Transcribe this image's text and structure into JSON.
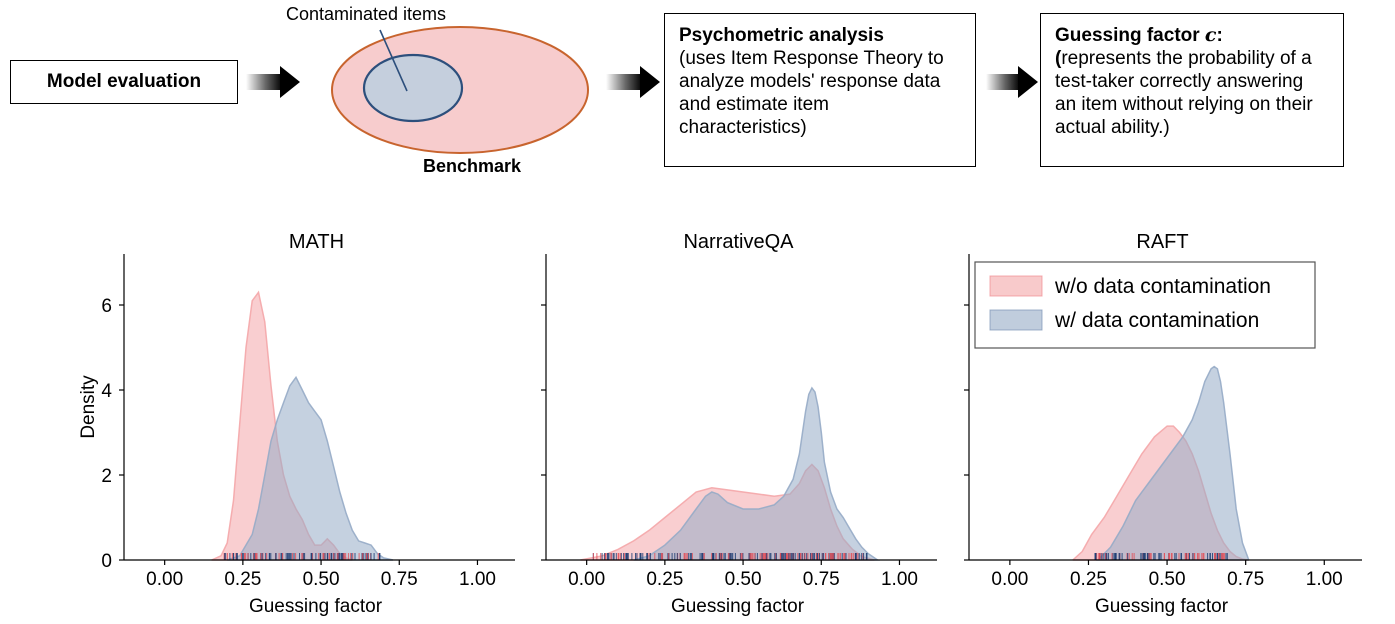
{
  "diagram": {
    "model_evaluation": "Model evaluation",
    "contaminated_items": "Contaminated items",
    "benchmark": "Benchmark",
    "psychometric_title": "Psychometric analysis",
    "psychometric_body": "(uses Item Response Theory to analyze models' response data and estimate item characteristics)",
    "guessing_title": "Guessing factor ",
    "guessing_symbol": "c",
    "guessing_colon": ":",
    "guessing_paren": "(",
    "guessing_body": "represents the probability of a test-taker correctly answering an item without relying on their actual ability.)",
    "colors": {
      "ellipse_fill": "#f7cccd",
      "ellipse_stroke": "#c8642e",
      "inner_fill": "#c5cfdd",
      "inner_stroke": "#2d4f7c"
    }
  },
  "chart_data": [
    {
      "type": "area",
      "title": "MATH",
      "xlabel": "Guessing factor",
      "ylabel": "Density",
      "xlim": [
        -0.13,
        1.12
      ],
      "ylim": [
        0,
        7.2
      ],
      "xticks": [
        "0.00",
        "0.25",
        "0.50",
        "0.75",
        "1.00"
      ],
      "yticks": [
        "0",
        "2",
        "4",
        "6"
      ],
      "series": [
        {
          "name": "w/o data contamination",
          "color": "#f4a6a9",
          "x": [
            0.15,
            0.18,
            0.2,
            0.22,
            0.24,
            0.26,
            0.28,
            0.3,
            0.32,
            0.34,
            0.36,
            0.38,
            0.4,
            0.42,
            0.44,
            0.46,
            0.48,
            0.5,
            0.52,
            0.54,
            0.56,
            0.58,
            0.6
          ],
          "y": [
            0,
            0.1,
            0.4,
            1.4,
            3.2,
            5.0,
            6.1,
            6.3,
            5.6,
            4.1,
            2.8,
            2.0,
            1.5,
            1.2,
            0.95,
            0.6,
            0.35,
            0.35,
            0.5,
            0.35,
            0.15,
            0.05,
            0
          ]
        },
        {
          "name": "w/ data contamination",
          "color": "#96abc7",
          "x": [
            0.2,
            0.24,
            0.28,
            0.3,
            0.32,
            0.34,
            0.36,
            0.38,
            0.4,
            0.42,
            0.44,
            0.46,
            0.48,
            0.5,
            0.52,
            0.54,
            0.56,
            0.58,
            0.6,
            0.62,
            0.64,
            0.66,
            0.68,
            0.7,
            0.73
          ],
          "y": [
            0,
            0.1,
            0.6,
            1.2,
            2.0,
            2.8,
            3.3,
            3.7,
            4.1,
            4.3,
            4.0,
            3.7,
            3.5,
            3.3,
            2.8,
            2.2,
            1.6,
            1.1,
            0.7,
            0.45,
            0.4,
            0.35,
            0.15,
            0.05,
            0
          ]
        }
      ],
      "rug_range": [
        0.19,
        0.69
      ]
    },
    {
      "type": "area",
      "title": "NarrativeQA",
      "xlabel": "Guessing factor",
      "ylabel": "",
      "xlim": [
        -0.13,
        1.12
      ],
      "ylim": [
        0,
        7.2
      ],
      "xticks": [
        "0.00",
        "0.25",
        "0.50",
        "0.75",
        "1.00"
      ],
      "yticks": [],
      "series": [
        {
          "name": "w/o data contamination",
          "color": "#f4a6a9",
          "x": [
            -0.02,
            0.05,
            0.1,
            0.15,
            0.2,
            0.25,
            0.3,
            0.35,
            0.4,
            0.45,
            0.5,
            0.55,
            0.6,
            0.65,
            0.68,
            0.7,
            0.72,
            0.74,
            0.76,
            0.78,
            0.8,
            0.82,
            0.85,
            0.88,
            0.92
          ],
          "y": [
            0,
            0.1,
            0.25,
            0.45,
            0.7,
            1.0,
            1.3,
            1.6,
            1.7,
            1.65,
            1.6,
            1.55,
            1.5,
            1.55,
            1.8,
            2.1,
            2.25,
            2.1,
            1.7,
            1.2,
            0.8,
            0.5,
            0.25,
            0.08,
            0
          ]
        },
        {
          "name": "w/ data contamination",
          "color": "#96abc7",
          "x": [
            0.15,
            0.2,
            0.25,
            0.3,
            0.35,
            0.38,
            0.4,
            0.42,
            0.45,
            0.5,
            0.55,
            0.6,
            0.63,
            0.66,
            0.68,
            0.69,
            0.7,
            0.71,
            0.72,
            0.73,
            0.74,
            0.75,
            0.76,
            0.78,
            0.8,
            0.82,
            0.84,
            0.86,
            0.88,
            0.9,
            0.93
          ],
          "y": [
            0,
            0.1,
            0.35,
            0.7,
            1.2,
            1.5,
            1.6,
            1.55,
            1.35,
            1.2,
            1.2,
            1.3,
            1.5,
            1.9,
            2.5,
            3.0,
            3.5,
            3.9,
            4.05,
            3.95,
            3.6,
            3.0,
            2.3,
            1.6,
            1.2,
            1.0,
            0.75,
            0.5,
            0.3,
            0.15,
            0
          ]
        }
      ],
      "rug_range": [
        0.02,
        0.9
      ]
    },
    {
      "type": "area",
      "title": "RAFT",
      "xlabel": "Guessing factor",
      "ylabel": "",
      "xlim": [
        -0.13,
        1.12
      ],
      "ylim": [
        0,
        7.2
      ],
      "xticks": [
        "0.00",
        "0.25",
        "0.50",
        "0.75",
        "1.00"
      ],
      "yticks": [],
      "series": [
        {
          "name": "w/o data contamination",
          "color": "#f4a6a9",
          "x": [
            0.2,
            0.23,
            0.26,
            0.3,
            0.34,
            0.38,
            0.42,
            0.46,
            0.5,
            0.52,
            0.54,
            0.56,
            0.58,
            0.6,
            0.62,
            0.64,
            0.66,
            0.68,
            0.7,
            0.72,
            0.74,
            0.76
          ],
          "y": [
            0,
            0.2,
            0.6,
            1.0,
            1.5,
            2.0,
            2.5,
            2.9,
            3.15,
            3.15,
            3.0,
            2.8,
            2.5,
            2.1,
            1.6,
            1.1,
            0.7,
            0.4,
            0.2,
            0.08,
            0.02,
            0
          ]
        },
        {
          "name": "w/ data contamination",
          "color": "#96abc7",
          "x": [
            0.28,
            0.32,
            0.36,
            0.4,
            0.44,
            0.48,
            0.52,
            0.55,
            0.58,
            0.6,
            0.62,
            0.64,
            0.65,
            0.66,
            0.67,
            0.68,
            0.7,
            0.72,
            0.74,
            0.76
          ],
          "y": [
            0,
            0.3,
            0.8,
            1.4,
            1.8,
            2.2,
            2.6,
            2.9,
            3.3,
            3.7,
            4.2,
            4.5,
            4.55,
            4.5,
            4.2,
            3.7,
            2.5,
            1.2,
            0.4,
            0
          ]
        }
      ],
      "rug_range": [
        0.27,
        0.7
      ]
    }
  ],
  "legend": {
    "position": "upper-right of RAFT panel",
    "entries": [
      "w/o data contamination",
      "w/ data contamination"
    ]
  }
}
